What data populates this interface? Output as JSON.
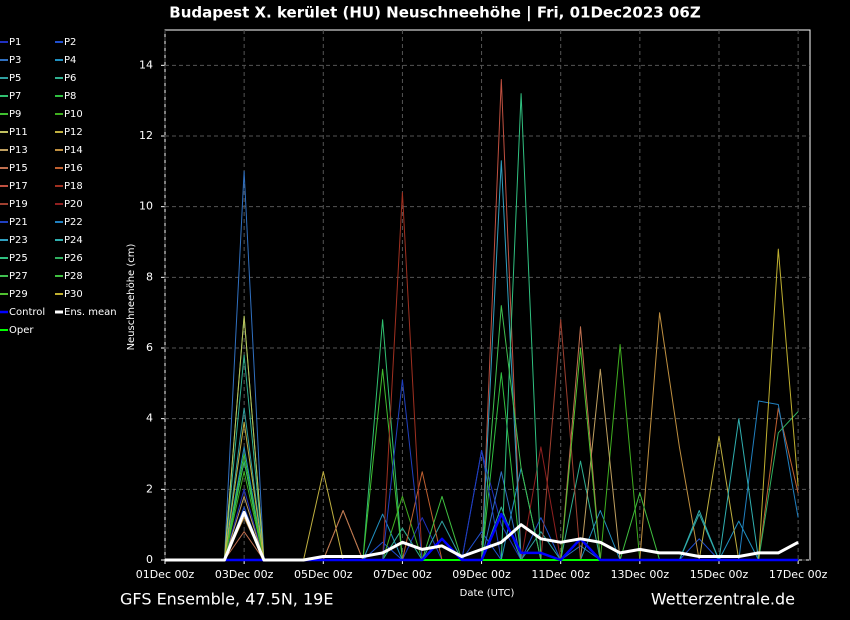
{
  "chart_data": {
    "type": "line",
    "title": "Budapest X. kerület  (HU)  Neuschneehöhe | Fri, 01Dec2023 06Z",
    "y_label": "Neuschneehöhe (cm)",
    "x_label": "Date (UTC)",
    "footer_left": "GFS Ensemble, 47.5N, 19E",
    "footer_right": "Wetterzentrale.de",
    "grid": true,
    "xlim": [
      0,
      16.3
    ],
    "ylim": [
      0,
      15
    ],
    "xticks": [
      {
        "value": 0,
        "label": "01Dec 00z"
      },
      {
        "value": 2,
        "label": "03Dec 00z"
      },
      {
        "value": 4,
        "label": "05Dec 00z"
      },
      {
        "value": 6,
        "label": "07Dec 00z"
      },
      {
        "value": 8,
        "label": "09Dec 00z"
      },
      {
        "value": 10,
        "label": "11Dec 00z"
      },
      {
        "value": 12,
        "label": "13Dec 00z"
      },
      {
        "value": 14,
        "label": "15Dec 00z"
      },
      {
        "value": 16,
        "label": "17Dec 00z"
      }
    ],
    "yticks": [
      0,
      2,
      4,
      6,
      8,
      10,
      12,
      14
    ],
    "x": [
      0,
      0.5,
      1,
      1.5,
      2,
      2.5,
      3,
      3.5,
      4,
      4.5,
      5,
      5.5,
      6,
      6.5,
      7,
      7.5,
      8,
      8.5,
      9,
      9.5,
      10,
      10.5,
      11,
      11.5,
      12,
      12.5,
      13,
      13.5,
      14,
      14.5,
      15,
      15.5,
      16
    ],
    "series": [
      {
        "name": "P1",
        "color": "#2030c0",
        "values": [
          0,
          0,
          0,
          0,
          2,
          0,
          0,
          0,
          0,
          0,
          0,
          0,
          0,
          1.2,
          0,
          0,
          3.1,
          1,
          0,
          0,
          0,
          0,
          0,
          0,
          0,
          0,
          0,
          0,
          0,
          0,
          0,
          0,
          0
        ]
      },
      {
        "name": "P2",
        "color": "#2050d0",
        "values": [
          0,
          0,
          0,
          0,
          1.5,
          0,
          0,
          0,
          0,
          0,
          0,
          0.5,
          0,
          0,
          0,
          0,
          0.8,
          0,
          0,
          1.2,
          0,
          0,
          0,
          0,
          0,
          0,
          0,
          0.6,
          0,
          0,
          0,
          0,
          0
        ]
      },
      {
        "name": "P3",
        "color": "#3070c0",
        "values": [
          0,
          0,
          0,
          0,
          11,
          0,
          0,
          0,
          0,
          0,
          0,
          0,
          0,
          0,
          0,
          0,
          0,
          2.5,
          0,
          0,
          0,
          0.4,
          0,
          0,
          0,
          0,
          0,
          0,
          0,
          0,
          0,
          0,
          0
        ]
      },
      {
        "name": "P4",
        "color": "#2090c0",
        "values": [
          0,
          0,
          0,
          0,
          3.2,
          0,
          0,
          0,
          0,
          0,
          0,
          1.3,
          0,
          0,
          0,
          0,
          0,
          0,
          2.6,
          0,
          0,
          0,
          1.4,
          0,
          0,
          0,
          0,
          0,
          0,
          1.1,
          0,
          0,
          0
        ]
      },
      {
        "name": "P5",
        "color": "#30a0a0",
        "values": [
          0,
          0,
          0,
          0,
          4.3,
          0,
          0,
          0,
          0,
          0,
          0,
          0,
          0,
          0,
          1.1,
          0,
          0,
          0,
          0,
          0.8,
          0,
          0,
          0,
          0,
          0,
          0,
          0,
          1.3,
          0,
          0,
          0,
          0,
          0
        ]
      },
      {
        "name": "P6",
        "color": "#30b090",
        "values": [
          0,
          0,
          0,
          0,
          5.8,
          0,
          0,
          0,
          0,
          0,
          0,
          0,
          0.9,
          0,
          0,
          0,
          0,
          1.5,
          0,
          0,
          0,
          2.8,
          0,
          0,
          0,
          0,
          0,
          0,
          0,
          0,
          0,
          0,
          0
        ]
      },
      {
        "name": "P7",
        "color": "#30c070",
        "values": [
          0,
          0,
          0,
          0,
          2.8,
          0,
          0,
          0,
          0,
          0,
          0,
          6.8,
          0,
          0,
          0,
          0,
          0,
          0,
          0,
          0,
          0,
          0,
          0,
          0,
          0,
          0,
          0,
          0,
          0,
          0,
          0,
          0,
          0
        ]
      },
      {
        "name": "P8",
        "color": "#30c040",
        "values": [
          0,
          0,
          0,
          0,
          6.9,
          0,
          0,
          0,
          0,
          0,
          0,
          0,
          0,
          0,
          0,
          0,
          0,
          5.3,
          0,
          0,
          0,
          0,
          0,
          0,
          0,
          0,
          0,
          0,
          0,
          0,
          0,
          0,
          0
        ]
      },
      {
        "name": "P9",
        "color": "#40c030",
        "values": [
          0,
          0,
          0,
          0,
          3,
          0,
          0,
          0,
          0,
          0,
          0,
          5.4,
          0,
          0,
          0,
          0,
          0,
          0,
          0,
          0,
          0,
          0,
          0,
          0,
          0,
          0,
          0,
          0,
          0,
          0,
          0,
          0,
          0
        ]
      },
      {
        "name": "P10",
        "color": "#40b020",
        "values": [
          0,
          0,
          0,
          0,
          2.5,
          0,
          0,
          0,
          0,
          0,
          0,
          0,
          1.8,
          0,
          0,
          0,
          0,
          0,
          0,
          0,
          0,
          0,
          0,
          6.1,
          0,
          0,
          0,
          0,
          0,
          0,
          0,
          0,
          0
        ]
      },
      {
        "name": "P11",
        "color": "#c0c060",
        "values": [
          0,
          0,
          0,
          0,
          6.9,
          0,
          0,
          0,
          0,
          1.4,
          0,
          0,
          0,
          0,
          0,
          0,
          0,
          0,
          0,
          0,
          0,
          0,
          0,
          0,
          0,
          0,
          0,
          0,
          0,
          0,
          0,
          0,
          0
        ]
      },
      {
        "name": "P12",
        "color": "#c0b040",
        "values": [
          0,
          0,
          0,
          0,
          3.9,
          0,
          0,
          0,
          2.5,
          0,
          0,
          0,
          0,
          0,
          0,
          0,
          0,
          0,
          0,
          0,
          0,
          0,
          0,
          0,
          0,
          0,
          0,
          0,
          3.5,
          0,
          0,
          0,
          0
        ]
      },
      {
        "name": "P13",
        "color": "#c0a060",
        "values": [
          0,
          0,
          0,
          0,
          1.8,
          0,
          0,
          0,
          0,
          0,
          0,
          0,
          0,
          0,
          0,
          0,
          0,
          0,
          0,
          0,
          0,
          0,
          5.4,
          0,
          0,
          0,
          0,
          0,
          0,
          0,
          0,
          0,
          0
        ]
      },
      {
        "name": "P14",
        "color": "#c09040",
        "values": [
          0,
          0,
          0,
          0,
          1.2,
          0,
          0,
          0,
          0,
          0,
          0,
          0,
          0,
          0,
          0,
          0,
          0,
          0,
          0,
          0,
          0,
          0,
          0,
          0,
          0,
          7,
          3.2,
          0,
          0,
          0,
          0,
          0,
          0
        ]
      },
      {
        "name": "P15",
        "color": "#c07050",
        "values": [
          0,
          0,
          0,
          0,
          0.8,
          0,
          0,
          0,
          0,
          1.4,
          0,
          0,
          0,
          0,
          0,
          0,
          0,
          0,
          0,
          0,
          0,
          6.6,
          0,
          0,
          0,
          0,
          0,
          0,
          0,
          0,
          0,
          0,
          0
        ]
      },
      {
        "name": "P16",
        "color": "#c06030",
        "values": [
          0,
          0,
          0,
          0,
          0,
          0,
          0,
          0,
          0,
          0,
          0,
          0,
          0,
          2.5,
          0,
          0,
          0,
          0,
          0,
          0,
          0,
          0,
          0,
          0,
          0,
          0,
          0,
          0,
          0,
          0,
          0,
          4.3,
          1.9
        ]
      },
      {
        "name": "P17",
        "color": "#c05040",
        "values": [
          0,
          0,
          0,
          0,
          0,
          0,
          0,
          0,
          0,
          0,
          0,
          0,
          0,
          0,
          0,
          0,
          0,
          13.6,
          0,
          0,
          0,
          0,
          0,
          0,
          0,
          0,
          0,
          0,
          0,
          0,
          0,
          0,
          0
        ]
      },
      {
        "name": "P18",
        "color": "#a03020",
        "values": [
          0,
          0,
          0,
          0,
          0,
          0,
          0,
          0,
          0,
          0,
          0,
          0,
          10.4,
          0,
          0,
          0,
          0,
          0,
          0,
          0,
          0,
          0,
          0,
          0,
          0,
          0,
          0,
          0,
          0,
          0,
          0,
          0,
          0
        ]
      },
      {
        "name": "P19",
        "color": "#a04030",
        "values": [
          0,
          0,
          0,
          0,
          0,
          0,
          0,
          0,
          0,
          0,
          0,
          0,
          0,
          0,
          0,
          0,
          0,
          0,
          0,
          0,
          6.8,
          0,
          0,
          0,
          0,
          0,
          0,
          0,
          0,
          0,
          0,
          0,
          0
        ]
      },
      {
        "name": "P20",
        "color": "#902020",
        "values": [
          0,
          0,
          0,
          0,
          0,
          0,
          0,
          0,
          0,
          0,
          0,
          0,
          0,
          0,
          0,
          0,
          0,
          0,
          0,
          3.2,
          0,
          0,
          0,
          0,
          0,
          0,
          0,
          0,
          0,
          0,
          0,
          0,
          0
        ]
      },
      {
        "name": "P21",
        "color": "#2040c0",
        "values": [
          0,
          0,
          0,
          0,
          0,
          0,
          0,
          0,
          0,
          0,
          0,
          0,
          5.1,
          0,
          0,
          0,
          3.1,
          0,
          0,
          0,
          0,
          0,
          0,
          0,
          0,
          0,
          0,
          0,
          0,
          0,
          0,
          0,
          0
        ]
      },
      {
        "name": "P22",
        "color": "#2080c0",
        "values": [
          0,
          0,
          0,
          0,
          0,
          0,
          0,
          0,
          0,
          0,
          0,
          0,
          0,
          0,
          0,
          0,
          0,
          0,
          0,
          0,
          0,
          0,
          0,
          0,
          0,
          0,
          0,
          0,
          0,
          0,
          4.5,
          4.4,
          1.2
        ]
      },
      {
        "name": "P23",
        "color": "#30a0c0",
        "values": [
          0,
          0,
          0,
          0,
          0,
          0,
          0,
          0,
          0,
          0,
          0,
          0,
          0,
          0,
          0,
          0,
          0,
          11.3,
          0,
          0,
          0,
          0,
          0,
          0,
          0,
          0,
          0,
          0,
          0,
          0,
          0,
          0,
          0
        ]
      },
      {
        "name": "P24",
        "color": "#30b0b0",
        "values": [
          0,
          0,
          0,
          0,
          0,
          0,
          0,
          0,
          0,
          0,
          0,
          0,
          0,
          0,
          0,
          0,
          0,
          0,
          0,
          0,
          0,
          0,
          0,
          0,
          0,
          0,
          0,
          1.4,
          0,
          4,
          0,
          0,
          0
        ]
      },
      {
        "name": "P25",
        "color": "#30c080",
        "values": [
          0,
          0,
          0,
          0,
          0,
          0,
          0,
          0,
          0,
          0,
          0,
          0,
          0,
          0,
          0,
          0,
          0,
          0,
          13.2,
          0,
          0,
          0,
          0,
          0,
          0,
          0,
          0,
          0,
          0,
          0,
          0,
          0,
          0
        ]
      },
      {
        "name": "P26",
        "color": "#30b060",
        "values": [
          0,
          0,
          0,
          0,
          0,
          0,
          0,
          0,
          0,
          0,
          0,
          0,
          0,
          0,
          0,
          0,
          0,
          0,
          0,
          0,
          0,
          0,
          0,
          0,
          0,
          0,
          0,
          0,
          0,
          0,
          0,
          3.6,
          4.2
        ]
      },
      {
        "name": "P27",
        "color": "#40c050",
        "values": [
          0,
          0,
          0,
          0,
          0,
          0,
          0,
          0,
          0,
          0,
          0,
          0,
          0,
          0,
          0,
          0,
          0,
          7.2,
          2.6,
          0,
          0,
          0,
          0,
          0,
          0,
          0,
          0,
          0,
          0,
          0,
          0,
          0,
          0
        ]
      },
      {
        "name": "P28",
        "color": "#40c040",
        "values": [
          0,
          0,
          0,
          0,
          0,
          0,
          0,
          0,
          0,
          0,
          0,
          0,
          0,
          0,
          1.8,
          0,
          0,
          0,
          0,
          0,
          0,
          0,
          0,
          0,
          1.9,
          0,
          0,
          0,
          0,
          0,
          0,
          0,
          0
        ]
      },
      {
        "name": "P29",
        "color": "#50c030",
        "values": [
          0,
          0,
          0,
          0,
          0,
          0,
          0,
          0,
          0,
          0,
          0,
          0,
          0,
          0,
          0,
          0,
          0,
          0,
          0,
          0,
          0,
          6,
          0,
          0,
          0,
          0,
          0,
          0,
          0,
          0,
          0,
          0,
          0
        ]
      },
      {
        "name": "P30",
        "color": "#c0b030",
        "values": [
          0,
          0,
          0,
          0,
          0,
          0,
          0,
          0,
          0,
          0,
          0,
          0,
          0,
          0,
          0,
          0,
          0,
          0,
          0,
          0,
          0,
          0,
          0,
          0,
          0,
          0,
          0,
          0,
          0,
          0,
          0,
          8.8,
          2.1
        ]
      },
      {
        "name": "Control",
        "color": "#0000ff",
        "values": [
          0,
          0,
          0,
          0,
          0,
          0,
          0,
          0,
          0,
          0,
          0,
          0,
          0,
          0,
          0.6,
          0,
          0,
          1.3,
          0.2,
          0.2,
          0,
          0.6,
          0,
          0,
          0,
          0,
          0,
          0,
          0,
          0,
          0,
          0,
          0
        ]
      },
      {
        "name": "Ens. mean",
        "color": "#ffffff",
        "values": [
          0,
          0,
          0,
          0,
          1.35,
          0,
          0,
          0,
          0.1,
          0.1,
          0.1,
          0.2,
          0.5,
          0.3,
          0.4,
          0.1,
          0.3,
          0.5,
          1,
          0.6,
          0.5,
          0.6,
          0.5,
          0.2,
          0.3,
          0.2,
          0.2,
          0.1,
          0.1,
          0.1,
          0.2,
          0.2,
          0.5
        ]
      },
      {
        "name": "Oper",
        "color": "#00ff00",
        "values": [
          0,
          0,
          0,
          0,
          0,
          0,
          0,
          0,
          0,
          0,
          0,
          0,
          0,
          0,
          0,
          0,
          0,
          0,
          0,
          0,
          0,
          0,
          0,
          0,
          0,
          0,
          0,
          0,
          0,
          0,
          0,
          0,
          0
        ]
      }
    ]
  }
}
